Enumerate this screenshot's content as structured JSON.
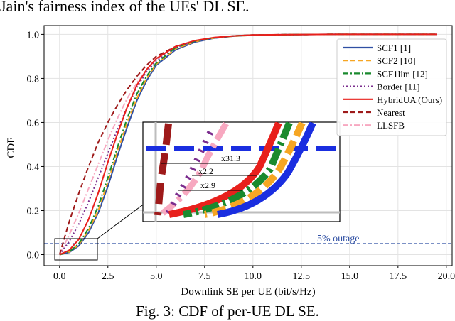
{
  "header_text": "Jain's fairness index of the UEs' DL SE.",
  "caption": "Fig. 3: CDF of per-UE DL SE.",
  "chart_data": {
    "type": "line",
    "title": "",
    "xlabel": "Downlink SE per UE (bit/s/Hz)",
    "ylabel": "CDF",
    "xlim": [
      -0.8,
      20.3
    ],
    "ylim": [
      -0.05,
      1.04
    ],
    "xticks": [
      0.0,
      2.5,
      5.0,
      7.5,
      10.0,
      12.5,
      15.0,
      17.5,
      20.0
    ],
    "xtick_labels": [
      "0.0",
      "2.5",
      "5.0",
      "7.5",
      "10.0",
      "12.5",
      "15.0",
      "17.5",
      "20.0"
    ],
    "yticks": [
      0.0,
      0.2,
      0.4,
      0.6,
      0.8,
      1.0
    ],
    "ytick_labels": [
      "0.0",
      "0.2",
      "0.4",
      "0.6",
      "0.8",
      "1.0"
    ],
    "grid": true,
    "legend_position": "top-right",
    "series": [
      {
        "name": "SCF1 [1]",
        "color": "#2f4fa3",
        "dash": "solid",
        "x": [
          0,
          0.5,
          1,
          1.5,
          2,
          2.5,
          3,
          3.5,
          4,
          4.5,
          5,
          6,
          7,
          8,
          9,
          10,
          12,
          14,
          17,
          19.5
        ],
        "y": [
          0,
          0.01,
          0.04,
          0.1,
          0.19,
          0.31,
          0.45,
          0.58,
          0.7,
          0.79,
          0.86,
          0.93,
          0.965,
          0.983,
          0.992,
          0.996,
          0.999,
          1,
          1,
          1
        ]
      },
      {
        "name": "SCF2 [10]",
        "color": "#f6a623",
        "dash": "dashed",
        "x": [
          0,
          0.5,
          1,
          1.5,
          2,
          2.5,
          3,
          3.5,
          4,
          4.5,
          5,
          6,
          7,
          8,
          9,
          10,
          12,
          14,
          17,
          19.5
        ],
        "y": [
          0,
          0.012,
          0.045,
          0.11,
          0.2,
          0.33,
          0.47,
          0.6,
          0.71,
          0.8,
          0.865,
          0.935,
          0.967,
          0.984,
          0.992,
          0.996,
          0.999,
          1,
          1,
          1
        ]
      },
      {
        "name": "SCF1lim [12]",
        "color": "#1a8a2e",
        "dash": "dashdot",
        "x": [
          0,
          0.5,
          1,
          1.5,
          2,
          2.5,
          3,
          3.5,
          4,
          4.5,
          5,
          6,
          7,
          8,
          9,
          10,
          12,
          14,
          17,
          19.5
        ],
        "y": [
          0,
          0.013,
          0.05,
          0.12,
          0.22,
          0.35,
          0.49,
          0.62,
          0.73,
          0.81,
          0.87,
          0.94,
          0.97,
          0.985,
          0.993,
          0.997,
          0.999,
          1,
          1,
          1
        ]
      },
      {
        "name": "Border [11]",
        "color": "#7b2d8e",
        "dash": "dotted",
        "x": [
          0,
          0.5,
          1,
          1.5,
          2,
          2.5,
          3,
          3.5,
          4,
          4.5,
          5,
          6,
          7,
          8,
          9,
          10,
          12,
          14,
          17,
          19.5
        ],
        "y": [
          0,
          0.06,
          0.14,
          0.24,
          0.35,
          0.46,
          0.57,
          0.67,
          0.76,
          0.83,
          0.88,
          0.94,
          0.97,
          0.985,
          0.993,
          0.997,
          0.999,
          1,
          1,
          1
        ]
      },
      {
        "name": "HybridUA (Ours)",
        "color": "#e8201c",
        "dash": "solid",
        "x": [
          0,
          0.5,
          1,
          1.5,
          2,
          2.5,
          3,
          3.5,
          4,
          4.5,
          5,
          6,
          7,
          8,
          9,
          10,
          12,
          14,
          17,
          19.5
        ],
        "y": [
          0,
          0.02,
          0.07,
          0.16,
          0.28,
          0.42,
          0.55,
          0.67,
          0.77,
          0.84,
          0.89,
          0.945,
          0.972,
          0.986,
          0.993,
          0.997,
          0.999,
          1,
          1,
          1
        ]
      },
      {
        "name": "Nearest",
        "color": "#9e1a1a",
        "dash": "dashed",
        "x": [
          0,
          0.5,
          1,
          1.5,
          2,
          2.5,
          3,
          3.5,
          4,
          4.5,
          5,
          6,
          7,
          8,
          9,
          10,
          12,
          14,
          17,
          19.5
        ],
        "y": [
          0,
          0.15,
          0.28,
          0.4,
          0.51,
          0.6,
          0.68,
          0.75,
          0.81,
          0.86,
          0.9,
          0.945,
          0.97,
          0.985,
          0.993,
          0.997,
          0.999,
          1,
          1,
          1
        ]
      },
      {
        "name": "LLSFB",
        "color": "#f7a8c0",
        "dash": "dashdot",
        "x": [
          0,
          0.5,
          1,
          1.5,
          2,
          2.5,
          3,
          3.5,
          4,
          4.5,
          5,
          6,
          7,
          8,
          9,
          10,
          12,
          14,
          17,
          19.5
        ],
        "y": [
          0,
          0.09,
          0.19,
          0.3,
          0.41,
          0.52,
          0.62,
          0.71,
          0.78,
          0.84,
          0.89,
          0.945,
          0.97,
          0.985,
          0.993,
          0.997,
          0.999,
          1,
          1,
          1
        ]
      }
    ],
    "reference_line": {
      "y": 0.05,
      "label": "5% outage",
      "color": "#2f4fa3",
      "dash": "dashed"
    },
    "inset": {
      "zoom_region_x": [
        0,
        2
      ],
      "zoom_region_y": [
        0,
        0.08
      ],
      "annotations": [
        "x31.3",
        "x2.2",
        "x2.9"
      ]
    }
  }
}
